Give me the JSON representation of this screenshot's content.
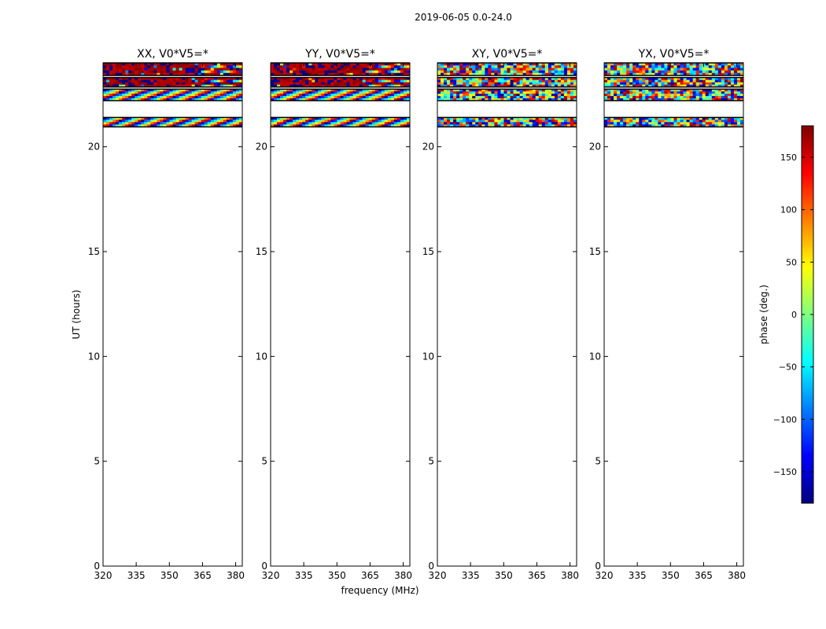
{
  "suptitle": "2019-06-05 0.0-24.0",
  "xlabel": "frequency (MHz)",
  "ylabel": "UT (hours)",
  "colorbar": {
    "label": "phase (deg.)",
    "range": [
      -180,
      180
    ],
    "ticks": [
      -150,
      -100,
      -50,
      0,
      50,
      100,
      150
    ],
    "colormap": "jet",
    "colors": [
      "#00007f",
      "#0000ff",
      "#007fff",
      "#00ffff",
      "#7fff7f",
      "#ffff00",
      "#ff7f00",
      "#ff0000",
      "#7f0000"
    ]
  },
  "chart_data": [
    {
      "type": "heatmap",
      "title": "XX, V0*V5=*",
      "xlim": [
        320,
        383
      ],
      "ylim": [
        0,
        24
      ],
      "xticks": [
        320,
        335,
        350,
        365,
        380
      ],
      "yticks": [
        0,
        5,
        10,
        15,
        20
      ],
      "grid": false,
      "bands": [
        {
          "ut_range": [
            23.4,
            24.0
          ],
          "phase_pattern": "mostly +150 to +180 (red), mixed above 360 MHz"
        },
        {
          "ut_range": [
            22.85,
            23.3
          ],
          "phase_pattern": "mostly red with mixed fringes"
        },
        {
          "ut_range": [
            22.2,
            22.75
          ],
          "phase_pattern": "rapidly wrapping, all phases"
        },
        {
          "ut_range": [
            20.95,
            21.4
          ],
          "phase_pattern": "rapidly wrapping, all phases"
        }
      ]
    },
    {
      "type": "heatmap",
      "title": "YY, V0*V5=*",
      "xlim": [
        320,
        383
      ],
      "ylim": [
        0,
        24
      ],
      "xticks": [
        320,
        335,
        350,
        365,
        380
      ],
      "yticks": [
        0,
        5,
        10,
        15,
        20
      ],
      "grid": false,
      "bands": [
        {
          "ut_range": [
            23.4,
            24.0
          ],
          "phase_pattern": "mostly +150 to +180 (red)"
        },
        {
          "ut_range": [
            22.85,
            23.3
          ],
          "phase_pattern": "mostly red"
        },
        {
          "ut_range": [
            22.2,
            22.75
          ],
          "phase_pattern": "rapidly wrapping, all phases"
        },
        {
          "ut_range": [
            20.95,
            21.4
          ],
          "phase_pattern": "rapidly wrapping, all phases"
        }
      ]
    },
    {
      "type": "heatmap",
      "title": "XY, V0*V5=*",
      "xlim": [
        320,
        383
      ],
      "ylim": [
        0,
        24
      ],
      "xticks": [
        320,
        335,
        350,
        365,
        380
      ],
      "yticks": [
        0,
        5,
        10,
        15,
        20
      ],
      "grid": false,
      "bands": [
        {
          "ut_range": [
            23.4,
            24.0
          ],
          "phase_pattern": "noisy, all phases"
        },
        {
          "ut_range": [
            22.85,
            23.3
          ],
          "phase_pattern": "noisy, all phases"
        },
        {
          "ut_range": [
            22.2,
            22.75
          ],
          "phase_pattern": "noisy, all phases"
        },
        {
          "ut_range": [
            20.95,
            21.4
          ],
          "phase_pattern": "noisy, all phases"
        }
      ]
    },
    {
      "type": "heatmap",
      "title": "YX, V0*V5=*",
      "xlim": [
        320,
        383
      ],
      "ylim": [
        0,
        24
      ],
      "xticks": [
        320,
        335,
        350,
        365,
        380
      ],
      "yticks": [
        0,
        5,
        10,
        15,
        20
      ],
      "grid": false,
      "bands": [
        {
          "ut_range": [
            23.4,
            24.0
          ],
          "phase_pattern": "noisy, all phases"
        },
        {
          "ut_range": [
            22.85,
            23.3
          ],
          "phase_pattern": "noisy, all phases"
        },
        {
          "ut_range": [
            22.2,
            22.75
          ],
          "phase_pattern": "noisy, all phases"
        },
        {
          "ut_range": [
            20.95,
            21.4
          ],
          "phase_pattern": "noisy, all phases"
        }
      ]
    }
  ]
}
